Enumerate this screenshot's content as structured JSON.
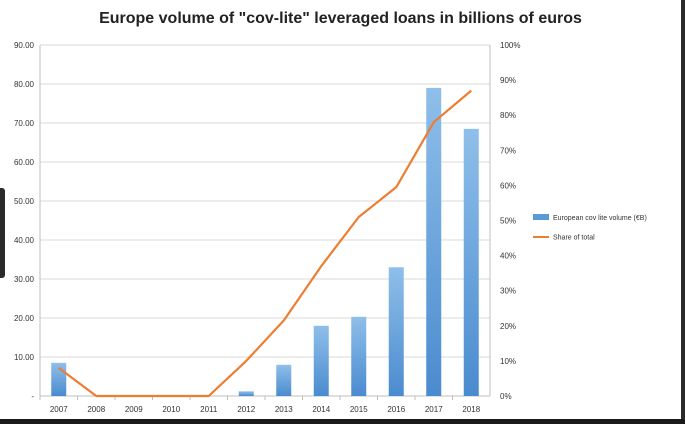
{
  "chart_data": {
    "type": "bar",
    "title": "Europe volume of \"cov-lite\" leveraged loans in billions of euros",
    "categories": [
      "2007",
      "2008",
      "2009",
      "2010",
      "2011",
      "2012",
      "2013",
      "2014",
      "2015",
      "2016",
      "2017",
      "2018"
    ],
    "series": [
      {
        "name": "European cov lite volume (€B)",
        "type": "bar",
        "axis": "left",
        "color": "#5b9bd5",
        "values": [
          8.5,
          0,
          0,
          0,
          0,
          1.2,
          8,
          18,
          20.3,
          33,
          79,
          68.5
        ]
      },
      {
        "name": "Share of total",
        "type": "line",
        "axis": "right",
        "color": "#ed7d31",
        "values": [
          8,
          0,
          0,
          0,
          0,
          10,
          21.5,
          37,
          51,
          59.5,
          78,
          87
        ]
      }
    ],
    "y_left": {
      "ylim": [
        0,
        90
      ],
      "tick_values": [
        0,
        10,
        20,
        30,
        40,
        50,
        60,
        70,
        80,
        90
      ],
      "tick_labels": [
        "-",
        "10.00",
        "20.00",
        "30.00",
        "40.00",
        "50.00",
        "60.00",
        "70.00",
        "80.00",
        "90.00"
      ]
    },
    "y_right": {
      "ylim": [
        0,
        100
      ],
      "tick_values": [
        0,
        10,
        20,
        30,
        40,
        50,
        60,
        70,
        80,
        90,
        100
      ],
      "tick_labels": [
        "0%",
        "10%",
        "20%",
        "30%",
        "40%",
        "50%",
        "60%",
        "70%",
        "80%",
        "90%",
        "100%"
      ]
    },
    "grid": true,
    "legend_position": "right"
  }
}
